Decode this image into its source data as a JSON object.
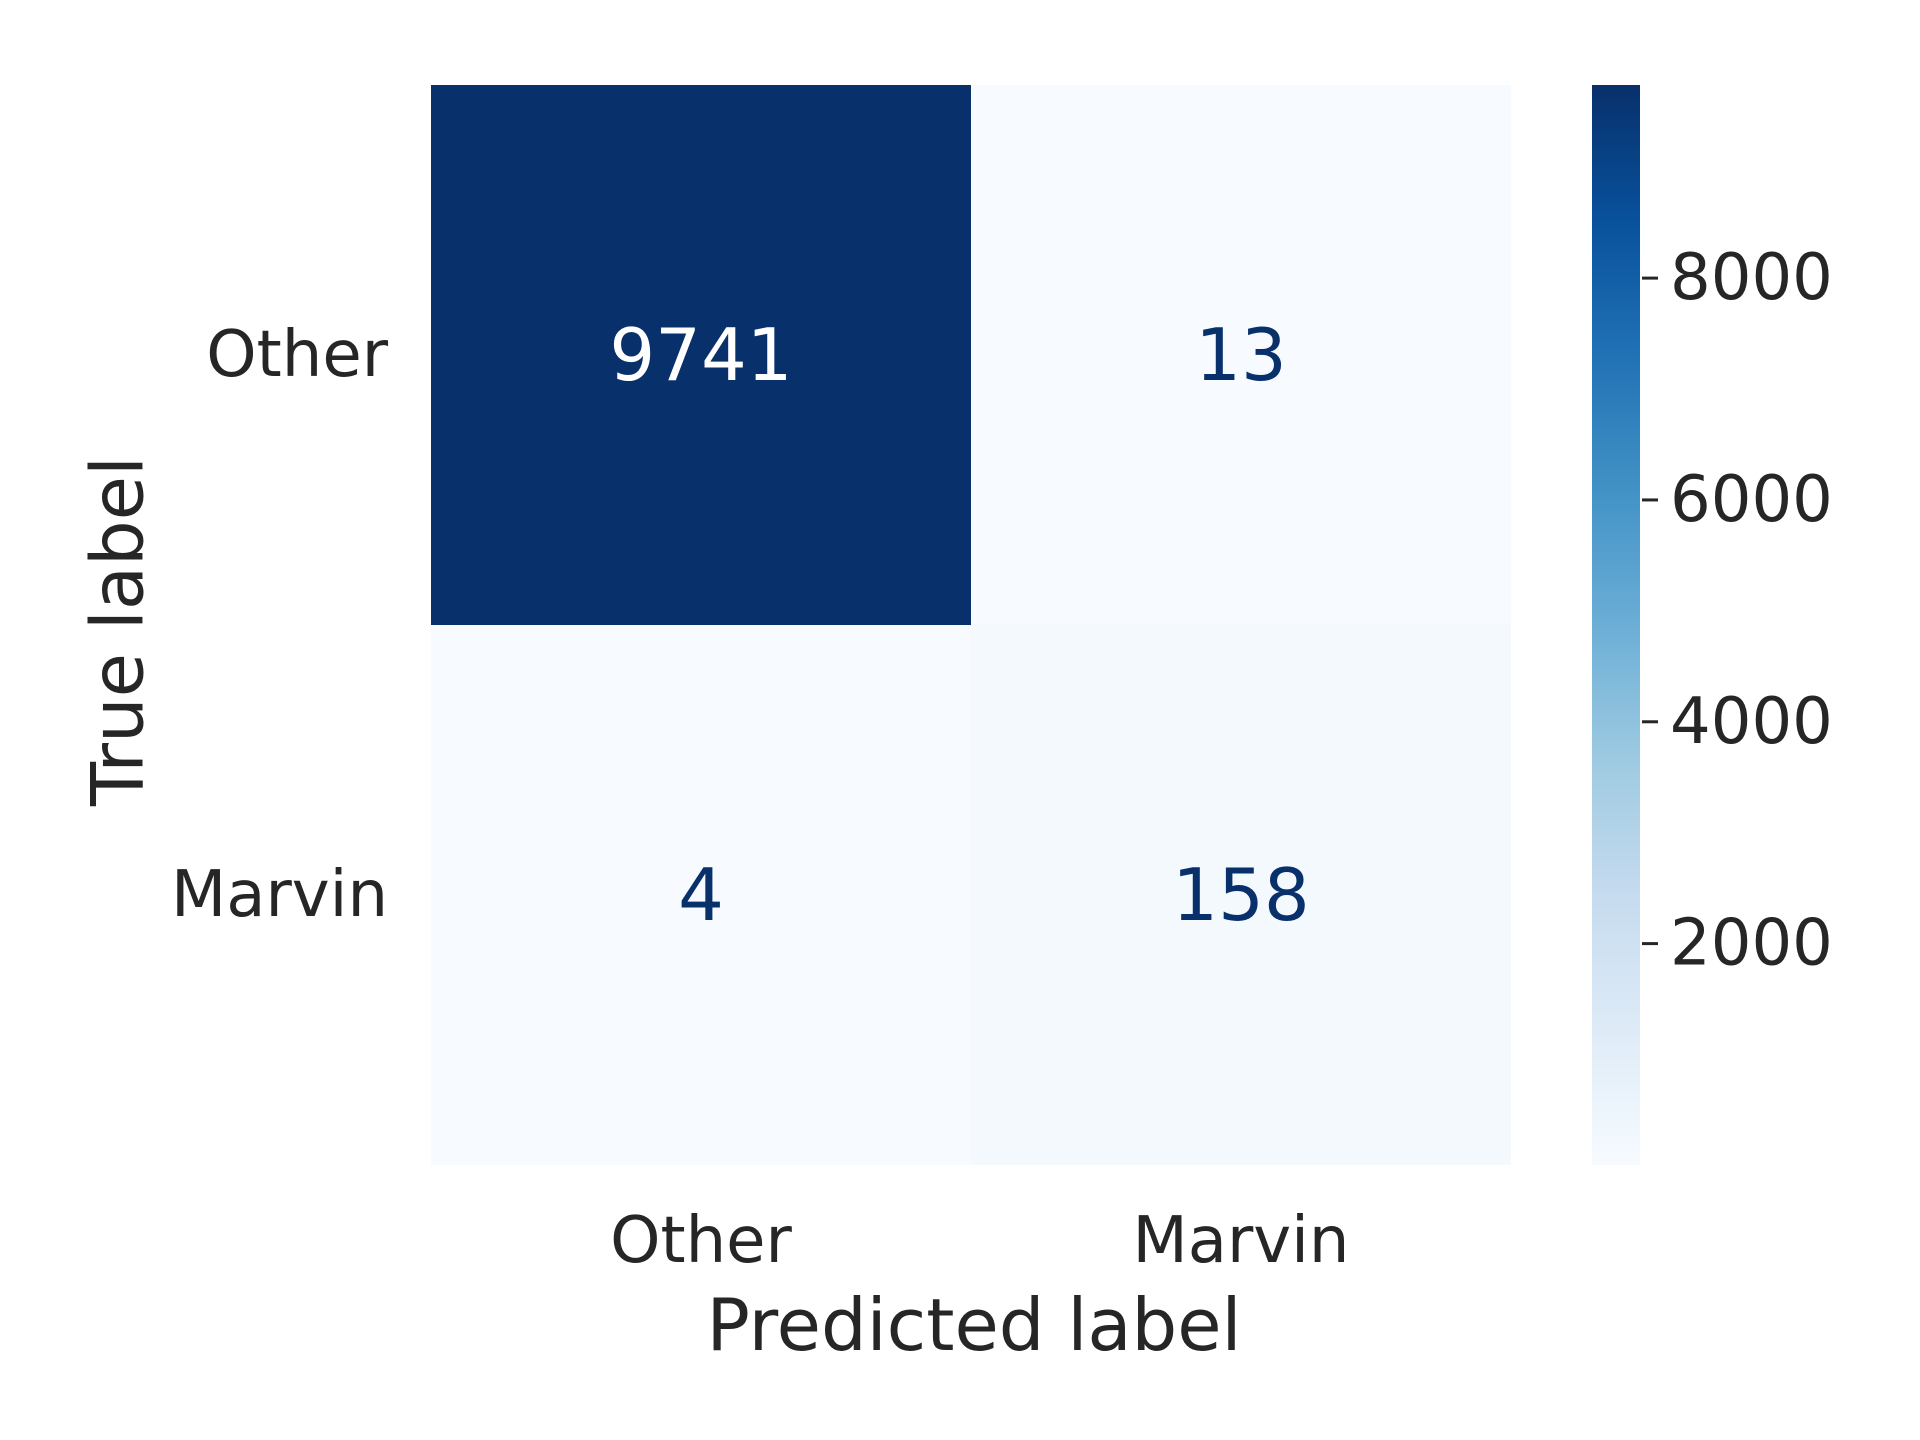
{
  "chart_data": {
    "type": "heatmap",
    "xlabel": "Predicted label",
    "ylabel": "True label",
    "x_categories": [
      "Other",
      "Marvin"
    ],
    "y_categories": [
      "Other",
      "Marvin"
    ],
    "values": [
      [
        9741,
        13
      ],
      [
        4,
        158
      ]
    ],
    "colormap": "Blues",
    "vmin": 4,
    "vmax": 9741,
    "colorbar": {
      "ticks": [
        2000,
        4000,
        6000,
        8000
      ],
      "tick_labels": [
        "2000",
        "4000",
        "6000",
        "8000"
      ]
    },
    "colors": {
      "text": "#262626",
      "cell_text_on_dark": "#ffffff",
      "cell_text_on_light": "#08306b"
    }
  }
}
